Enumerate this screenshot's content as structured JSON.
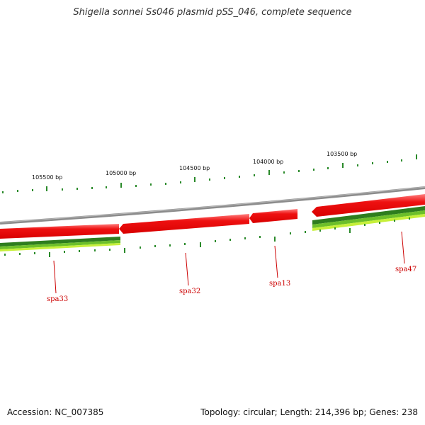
{
  "title": "Shigella sonnei Ss046 plasmid pSS_046, complete sequence",
  "ruler": {
    "labels": [
      "105500 bp",
      "105000 bp",
      "104500 bp",
      "104000 bp",
      "103500 bp"
    ]
  },
  "genes": [
    {
      "name": "spa33"
    },
    {
      "name": "spa32"
    },
    {
      "name": "spa13"
    },
    {
      "name": "spa47"
    }
  ],
  "colors": {
    "backbone": "#8a8a8a",
    "forward_gene": "#ee1111",
    "gene_label": "#cc0000",
    "tick": "#2a8a2a",
    "track_dark": "#2e7d1e",
    "track_mid": "#6cbf2a",
    "track_light": "#c6f03a"
  },
  "footer": {
    "accession": "Accession: NC_007385",
    "topology": "Topology: circular",
    "length": "Length: 214,396 bp",
    "genes": "Genes: 238"
  }
}
